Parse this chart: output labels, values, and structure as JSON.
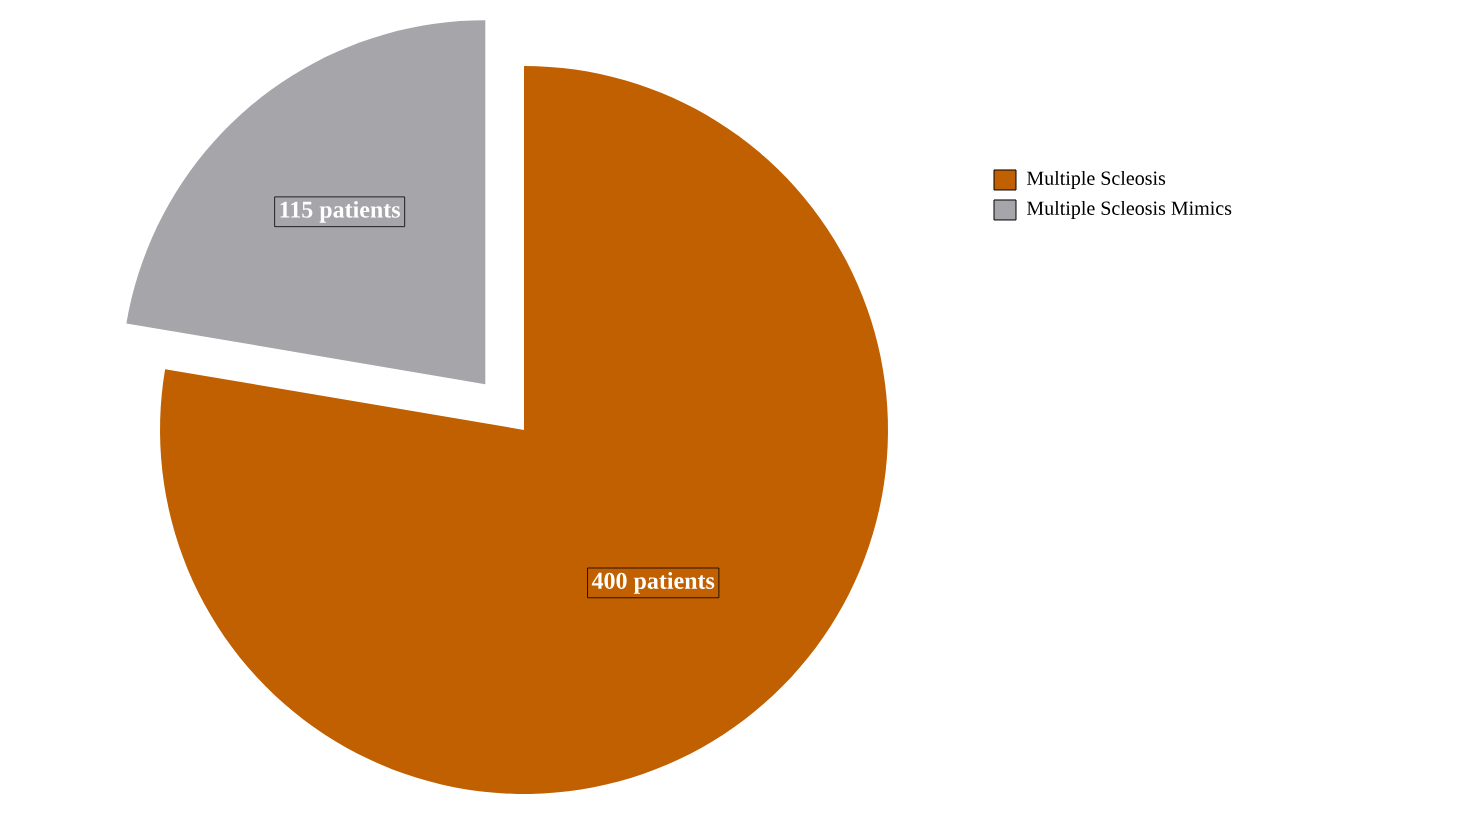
{
  "chart_data": {
    "type": "pie",
    "categories": [
      "Multiple Scleosis",
      "Multiple Scleosis Mimics"
    ],
    "values": [
      400,
      115
    ],
    "colors": [
      "#c06000",
      "#a5a5aa"
    ],
    "value_labels": [
      "400 patients",
      "115 patients"
    ],
    "legend": "right"
  }
}
